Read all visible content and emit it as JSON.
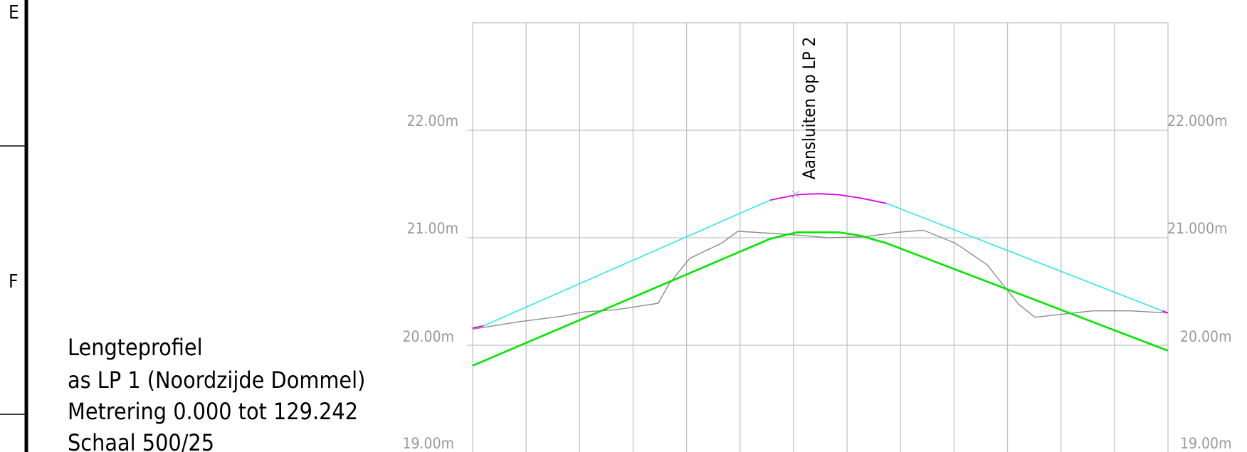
{
  "border": {
    "zones": [
      "E",
      "F"
    ]
  },
  "title_block": {
    "lines": [
      "Lengteprofiel",
      "as LP 1 (Noordzijde Dommel)",
      "Metrering 0.000 tot 129.242",
      "Schaal 500/25"
    ]
  },
  "annotation": {
    "text": "Aansluiten op LP 2"
  },
  "axes": {
    "left_labels": [
      "22.00m",
      "21.00m",
      "20.00m",
      "19.00m"
    ],
    "right_labels": [
      "22.000m",
      "21.000m",
      "20.00m",
      "19.00m"
    ]
  },
  "chart_data": {
    "type": "line",
    "x_range": [
      0,
      129.242
    ],
    "y_range": [
      18.77,
      23.0
    ],
    "y_ticks": [
      22.0,
      21.0,
      20.0,
      19.0
    ],
    "grid": true,
    "colors": {
      "terrain": "#8c8c8c",
      "design": "#00e600",
      "upper": "#2ee6f0",
      "vertical_curve": "#e600e6",
      "grid": "#c2c2c2"
    },
    "series": [
      {
        "id": "terrain",
        "points": [
          [
            0,
            20.15
          ],
          [
            8.8,
            20.22
          ],
          [
            16.7,
            20.27
          ],
          [
            20.7,
            20.31
          ],
          [
            26.6,
            20.33
          ],
          [
            34.5,
            20.39
          ],
          [
            36.5,
            20.57
          ],
          [
            40.4,
            20.81
          ],
          [
            46.3,
            20.95
          ],
          [
            49.3,
            21.06
          ],
          [
            59.2,
            21.03
          ],
          [
            66.1,
            21.0
          ],
          [
            73.0,
            21.01
          ],
          [
            78.9,
            21.05
          ],
          [
            83.8,
            21.07
          ],
          [
            89.7,
            20.95
          ],
          [
            95.6,
            20.75
          ],
          [
            101.5,
            20.38
          ],
          [
            104.5,
            20.26
          ],
          [
            115.3,
            20.32
          ],
          [
            122.2,
            20.32
          ],
          [
            129.2,
            20.3
          ]
        ]
      },
      {
        "id": "design",
        "points": [
          [
            0,
            19.81
          ],
          [
            55.3,
            20.99
          ],
          [
            60.2,
            21.05
          ],
          [
            64.1,
            21.05
          ],
          [
            68.1,
            21.05
          ],
          [
            72.0,
            21.02
          ],
          [
            76.9,
            20.95
          ],
          [
            129.2,
            19.95
          ]
        ]
      },
      {
        "id": "upper",
        "points": [
          [
            0,
            20.16
          ],
          [
            2.0,
            20.18
          ],
          [
            55.3,
            21.35
          ],
          [
            60.2,
            21.4
          ],
          [
            64.1,
            21.41
          ],
          [
            68.1,
            21.4
          ],
          [
            72.0,
            21.37
          ],
          [
            76.9,
            21.32
          ],
          [
            128.2,
            20.32
          ],
          [
            129.2,
            20.3
          ]
        ]
      }
    ],
    "vertical_curves": [
      {
        "x": [
          0,
          2.0
        ]
      },
      {
        "x": [
          55.3,
          76.9
        ]
      },
      {
        "x": [
          128.2,
          129.2
        ]
      }
    ]
  }
}
